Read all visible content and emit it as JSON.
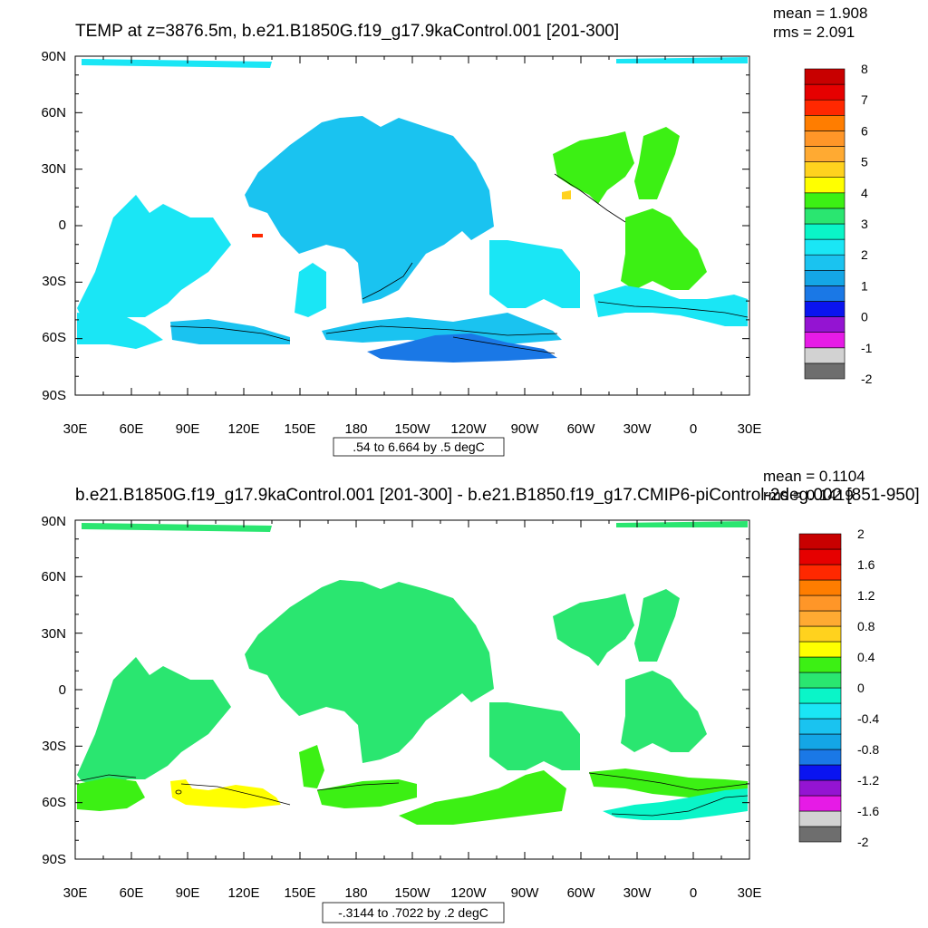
{
  "panels": [
    {
      "title": "TEMP at z=3876.5m, b.e21.B1850G.f19_g17.9kaControl.001 [201-300]",
      "mean_label": "mean = 1.908",
      "rms_label": "rms = 2.091",
      "contour_info": ".54 to 6.664 by .5 degC",
      "lat_labels": [
        "90N",
        "60N",
        "30N",
        "0",
        "30S",
        "60S",
        "90S"
      ],
      "lon_labels": [
        "30E",
        "60E",
        "90E",
        "120E",
        "150E",
        "180",
        "150W",
        "120W",
        "90W",
        "60W",
        "30W",
        "0",
        "30E"
      ],
      "colorbar": {
        "colors": [
          "#6e6e6e",
          "#d2d2d2",
          "#e61be6",
          "#9414d2",
          "#0a14f0",
          "#1a78e6",
          "#14a6e6",
          "#1ac3f0",
          "#1ae6f5",
          "#0af5c8",
          "#2ae670",
          "#3cf014",
          "#ffff00",
          "#ffd21e",
          "#ffaa32",
          "#ff9628",
          "#ff7d00",
          "#ff2800",
          "#e60000",
          "#c80000"
        ],
        "labels": [
          "8",
          "7",
          "6",
          "5",
          "4",
          "3",
          "2",
          "1",
          "0",
          "-1",
          "-2"
        ]
      },
      "regions": [
        {
          "name": "central-pacific-basin",
          "color": "#1ac3f0"
        },
        {
          "name": "indian-ocean-basin",
          "color": "#1ae6f5"
        },
        {
          "name": "atlantic-basin",
          "color": "#3cf014"
        },
        {
          "name": "southern-ocean",
          "color": "#1a78e6"
        },
        {
          "name": "arctic",
          "color": "#1ae6f5"
        }
      ]
    },
    {
      "title": "b.e21.B1850G.f19_g17.9kaControl.001 [201-300] - b.e21.B1850.f19_g17.CMIP6-piControl-2deg.002 [851-950]",
      "mean_label": "mean = 0.1104",
      "rms_label": "rms = 0.1419",
      "contour_info": "-.3144 to .7022 by .2 degC",
      "lat_labels": [
        "90N",
        "60N",
        "30N",
        "0",
        "30S",
        "60S",
        "90S"
      ],
      "lon_labels": [
        "30E",
        "60E",
        "90E",
        "120E",
        "150E",
        "180",
        "150W",
        "120W",
        "90W",
        "60W",
        "30W",
        "0",
        "30E"
      ],
      "colorbar": {
        "colors": [
          "#6e6e6e",
          "#d2d2d2",
          "#e61be6",
          "#9414d2",
          "#0a14f0",
          "#1a78e6",
          "#14a6e6",
          "#1ac3f0",
          "#1ae6f5",
          "#0af5c8",
          "#2ae670",
          "#3cf014",
          "#ffff00",
          "#ffd21e",
          "#ffaa32",
          "#ff9628",
          "#ff7d00",
          "#ff2800",
          "#e60000",
          "#c80000"
        ],
        "labels": [
          "2",
          "1.6",
          "1.2",
          "0.8",
          "0.4",
          "0",
          "-0.4",
          "-0.8",
          "-1.2",
          "-1.6",
          "-2"
        ]
      },
      "regions": [
        {
          "name": "global-basins",
          "color": "#2ae670"
        },
        {
          "name": "southern-ocean",
          "color": "#3cf014"
        },
        {
          "name": "warm-anomaly-patch",
          "color": "#ffff00"
        },
        {
          "name": "atlantic-southern",
          "color": "#0af5c8"
        }
      ]
    }
  ]
}
